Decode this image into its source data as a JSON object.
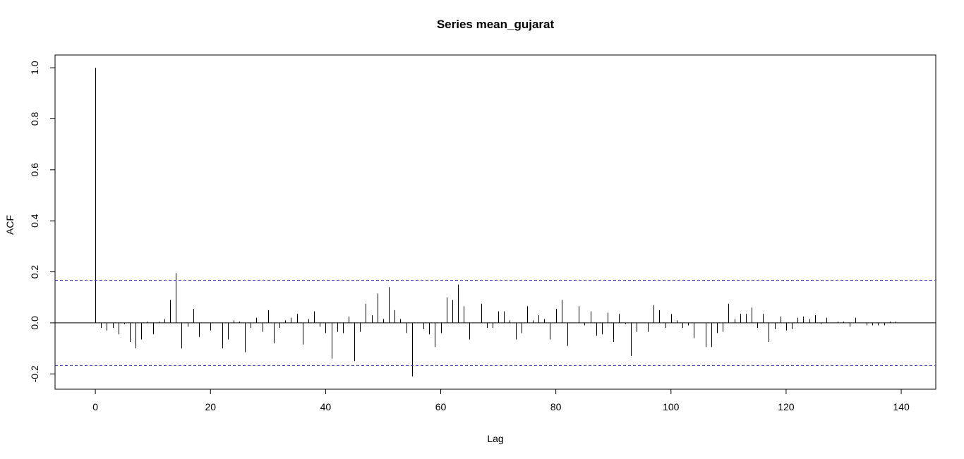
{
  "chart_data": {
    "type": "bar",
    "title": "Series  mean_gujarat",
    "xlabel": "Lag",
    "ylabel": "ACF",
    "xlim": [
      -7,
      146
    ],
    "ylim": [
      -0.26,
      1.05
    ],
    "x_ticks": [
      0,
      20,
      40,
      60,
      80,
      100,
      120,
      140
    ],
    "x_tick_labels": [
      "0",
      "20",
      "40",
      "60",
      "80",
      "100",
      "120",
      "140"
    ],
    "y_ticks": [
      -0.2,
      0.0,
      0.2,
      0.4,
      0.6,
      0.8,
      1.0
    ],
    "y_tick_labels": [
      "-0.2",
      "0.0",
      "0.2",
      "0.4",
      "0.6",
      "0.8",
      "1.0"
    ],
    "confidence_bound": 0.167,
    "confidence_color": "#3b3b9c",
    "bar_color": "#000000",
    "lags": [
      0,
      1,
      2,
      3,
      4,
      5,
      6,
      7,
      8,
      9,
      10,
      11,
      12,
      13,
      14,
      15,
      16,
      17,
      18,
      19,
      20,
      21,
      22,
      23,
      24,
      25,
      26,
      27,
      28,
      29,
      30,
      31,
      32,
      33,
      34,
      35,
      36,
      37,
      38,
      39,
      40,
      41,
      42,
      43,
      44,
      45,
      46,
      47,
      48,
      49,
      50,
      51,
      52,
      53,
      54,
      55,
      56,
      57,
      58,
      59,
      60,
      61,
      62,
      63,
      64,
      65,
      66,
      67,
      68,
      69,
      70,
      71,
      72,
      73,
      74,
      75,
      76,
      77,
      78,
      79,
      80,
      81,
      82,
      83,
      84,
      85,
      86,
      87,
      88,
      89,
      90,
      91,
      92,
      93,
      94,
      95,
      96,
      97,
      98,
      99,
      100,
      101,
      102,
      103,
      104,
      105,
      106,
      107,
      108,
      109,
      110,
      111,
      112,
      113,
      114,
      115,
      116,
      117,
      118,
      119,
      120,
      121,
      122,
      123,
      124,
      125,
      126,
      127,
      128,
      129,
      130,
      131,
      132,
      133,
      134,
      135,
      136,
      137,
      138,
      139
    ],
    "acf": [
      1.0,
      -0.02,
      -0.03,
      -0.02,
      -0.045,
      -0.005,
      -0.075,
      -0.1,
      -0.065,
      0.005,
      -0.045,
      0.005,
      0.015,
      0.09,
      0.195,
      -0.1,
      -0.015,
      0.055,
      -0.055,
      0.0,
      -0.03,
      0.0,
      -0.1,
      -0.065,
      0.01,
      0.005,
      -0.115,
      -0.02,
      0.02,
      -0.035,
      0.05,
      -0.08,
      -0.02,
      0.01,
      0.02,
      0.035,
      -0.085,
      0.015,
      0.045,
      -0.015,
      -0.04,
      -0.14,
      -0.035,
      -0.04,
      0.025,
      -0.15,
      -0.035,
      0.075,
      0.03,
      0.115,
      0.015,
      0.14,
      0.05,
      0.015,
      -0.04,
      -0.21,
      0.0,
      -0.025,
      -0.045,
      -0.095,
      -0.04,
      0.1,
      0.09,
      0.15,
      0.065,
      -0.065,
      0.0,
      0.075,
      -0.02,
      -0.02,
      0.045,
      0.045,
      0.01,
      -0.065,
      -0.04,
      0.065,
      0.01,
      0.03,
      0.015,
      -0.065,
      0.055,
      0.09,
      -0.09,
      0.0,
      0.065,
      -0.01,
      0.045,
      -0.05,
      -0.045,
      0.04,
      -0.075,
      0.035,
      -0.005,
      -0.13,
      -0.035,
      0.0,
      -0.035,
      0.07,
      0.05,
      -0.02,
      0.035,
      0.01,
      -0.02,
      -0.01,
      -0.06,
      0.0,
      -0.095,
      -0.095,
      -0.04,
      -0.035,
      0.075,
      0.015,
      0.035,
      0.035,
      0.06,
      -0.02,
      0.035,
      -0.075,
      -0.025,
      0.025,
      -0.03,
      -0.025,
      0.02,
      0.025,
      0.015,
      0.03,
      -0.005,
      0.02,
      0.0,
      0.005,
      0.005,
      -0.015,
      0.02,
      0.0,
      -0.01,
      -0.01,
      -0.01,
      -0.01,
      0.005,
      0.005
    ]
  }
}
